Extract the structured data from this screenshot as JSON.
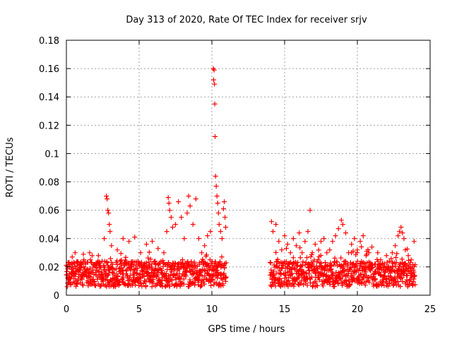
{
  "chart_data": {
    "type": "scatter",
    "title": "Day 313 of 2020, Rate Of TEC Index for receiver srjv",
    "xlabel": "GPS time / hours",
    "ylabel": "ROTI / TECUs",
    "xlim": [
      0,
      25
    ],
    "ylim": [
      0,
      0.18
    ],
    "xticks": [
      0,
      5,
      10,
      15,
      20,
      25
    ],
    "xtick_labels": [
      "0",
      "5",
      "10",
      "15",
      "20",
      "25"
    ],
    "yticks": [
      0,
      0.02,
      0.04,
      0.06,
      0.08,
      0.1,
      0.12,
      0.14,
      0.16,
      0.18
    ],
    "ytick_labels": [
      "0",
      "0.02",
      "0.04",
      "0.06",
      "0.08",
      "0.1",
      "0.12",
      "0.14",
      "0.16",
      "0.18"
    ],
    "grid": true,
    "marker": "+",
    "color": "#ff0000",
    "data_gap_hours": [
      11.0,
      14.0
    ],
    "series": [
      {
        "name": "srjv",
        "points": [
          [
            0.1,
            0.012
          ],
          [
            0.2,
            0.02
          ],
          [
            0.3,
            0.008
          ],
          [
            0.4,
            0.027
          ],
          [
            0.5,
            0.015
          ],
          [
            0.6,
            0.03
          ],
          [
            0.7,
            0.01
          ],
          [
            0.8,
            0.018
          ],
          [
            0.9,
            0.022
          ],
          [
            1.0,
            0.013
          ],
          [
            1.2,
            0.025
          ],
          [
            1.4,
            0.009
          ],
          [
            1.6,
            0.03
          ],
          [
            1.8,
            0.016
          ],
          [
            2.0,
            0.021
          ],
          [
            2.2,
            0.028
          ],
          [
            2.4,
            0.012
          ],
          [
            2.6,
            0.04
          ],
          [
            2.75,
            0.07
          ],
          [
            2.8,
            0.068
          ],
          [
            2.85,
            0.06
          ],
          [
            2.9,
            0.058
          ],
          [
            2.95,
            0.05
          ],
          [
            3.0,
            0.045
          ],
          [
            3.1,
            0.035
          ],
          [
            3.3,
            0.018
          ],
          [
            3.5,
            0.032
          ],
          [
            3.7,
            0.024
          ],
          [
            3.9,
            0.04
          ],
          [
            4.1,
            0.015
          ],
          [
            4.3,
            0.038
          ],
          [
            4.5,
            0.022
          ],
          [
            4.7,
            0.041
          ],
          [
            4.9,
            0.01
          ],
          [
            5.1,
            0.03
          ],
          [
            5.3,
            0.019
          ],
          [
            5.5,
            0.036
          ],
          [
            5.7,
            0.012
          ],
          [
            5.9,
            0.038
          ],
          [
            6.1,
            0.024
          ],
          [
            6.3,
            0.033
          ],
          [
            6.5,
            0.016
          ],
          [
            6.7,
            0.03
          ],
          [
            6.9,
            0.045
          ],
          [
            7.0,
            0.069
          ],
          [
            7.05,
            0.065
          ],
          [
            7.1,
            0.06
          ],
          [
            7.2,
            0.055
          ],
          [
            7.3,
            0.048
          ],
          [
            7.5,
            0.05
          ],
          [
            7.7,
            0.066
          ],
          [
            7.9,
            0.055
          ],
          [
            8.1,
            0.04
          ],
          [
            8.3,
            0.058
          ],
          [
            8.4,
            0.07
          ],
          [
            8.5,
            0.063
          ],
          [
            8.7,
            0.05
          ],
          [
            8.9,
            0.068
          ],
          [
            9.1,
            0.04
          ],
          [
            9.3,
            0.03
          ],
          [
            9.5,
            0.035
          ],
          [
            9.7,
            0.042
          ],
          [
            9.9,
            0.045
          ],
          [
            10.1,
            0.16
          ],
          [
            10.15,
            0.159
          ],
          [
            10.12,
            0.152
          ],
          [
            10.18,
            0.149
          ],
          [
            10.2,
            0.135
          ],
          [
            10.22,
            0.112
          ],
          [
            10.25,
            0.084
          ],
          [
            10.3,
            0.077
          ],
          [
            10.35,
            0.07
          ],
          [
            10.4,
            0.065
          ],
          [
            10.45,
            0.058
          ],
          [
            10.5,
            0.05
          ],
          [
            10.6,
            0.045
          ],
          [
            10.7,
            0.04
          ],
          [
            10.8,
            0.061
          ],
          [
            10.85,
            0.066
          ],
          [
            10.9,
            0.055
          ],
          [
            10.95,
            0.048
          ],
          [
            14.1,
            0.052
          ],
          [
            14.2,
            0.045
          ],
          [
            14.4,
            0.05
          ],
          [
            14.6,
            0.038
          ],
          [
            14.8,
            0.032
          ],
          [
            15.0,
            0.042
          ],
          [
            15.2,
            0.036
          ],
          [
            15.4,
            0.03
          ],
          [
            15.6,
            0.04
          ],
          [
            15.8,
            0.035
          ],
          [
            16.0,
            0.044
          ],
          [
            16.2,
            0.03
          ],
          [
            16.4,
            0.038
          ],
          [
            16.6,
            0.045
          ],
          [
            16.75,
            0.06
          ],
          [
            16.9,
            0.03
          ],
          [
            17.1,
            0.036
          ],
          [
            17.3,
            0.025
          ],
          [
            17.5,
            0.038
          ],
          [
            17.7,
            0.04
          ],
          [
            17.9,
            0.03
          ],
          [
            18.1,
            0.032
          ],
          [
            18.3,
            0.038
          ],
          [
            18.5,
            0.042
          ],
          [
            18.7,
            0.047
          ],
          [
            18.9,
            0.053
          ],
          [
            19.0,
            0.05
          ],
          [
            19.2,
            0.044
          ],
          [
            19.4,
            0.03
          ],
          [
            19.6,
            0.036
          ],
          [
            19.8,
            0.04
          ],
          [
            20.0,
            0.032
          ],
          [
            20.2,
            0.038
          ],
          [
            20.4,
            0.042
          ],
          [
            20.6,
            0.028
          ],
          [
            20.8,
            0.03
          ],
          [
            21.0,
            0.034
          ],
          [
            21.2,
            0.022
          ],
          [
            21.4,
            0.03
          ],
          [
            21.6,
            0.025
          ],
          [
            21.8,
            0.02
          ],
          [
            22.0,
            0.028
          ],
          [
            22.2,
            0.024
          ],
          [
            22.4,
            0.03
          ],
          [
            22.6,
            0.035
          ],
          [
            22.8,
            0.042
          ],
          [
            22.9,
            0.045
          ],
          [
            23.0,
            0.048
          ],
          [
            23.1,
            0.044
          ],
          [
            23.2,
            0.04
          ],
          [
            23.3,
            0.032
          ],
          [
            23.5,
            0.028
          ],
          [
            23.7,
            0.025
          ],
          [
            23.9,
            0.038
          ]
        ]
      }
    ]
  }
}
